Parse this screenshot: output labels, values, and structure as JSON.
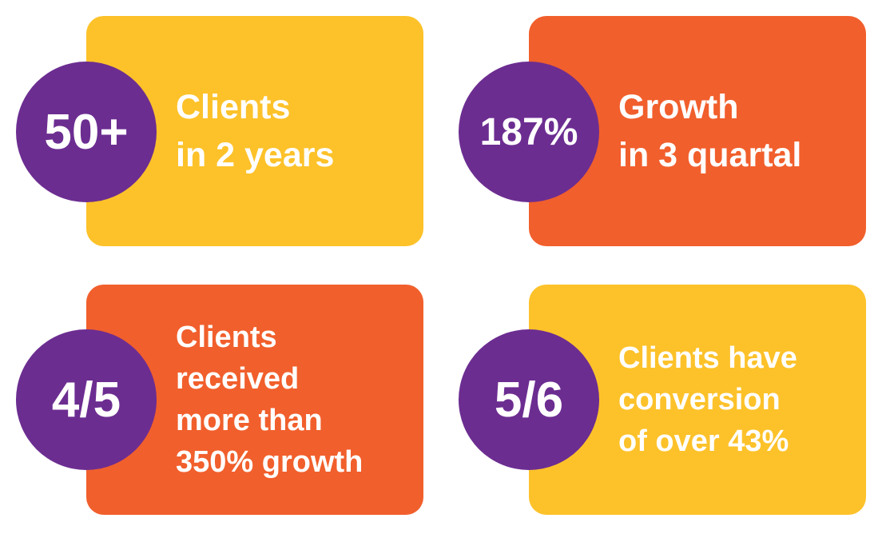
{
  "cards": [
    {
      "stat": "50+",
      "lines": [
        "Clients",
        "in 2 years"
      ]
    },
    {
      "stat": "187%",
      "lines": [
        "Growth",
        "in 3 quartal"
      ]
    },
    {
      "stat": "4/5",
      "lines": [
        "Clients",
        "received",
        "more than",
        "350% growth"
      ]
    },
    {
      "stat": "5/6",
      "lines": [
        "Clients have",
        "conversion",
        "of over 43%"
      ]
    }
  ]
}
